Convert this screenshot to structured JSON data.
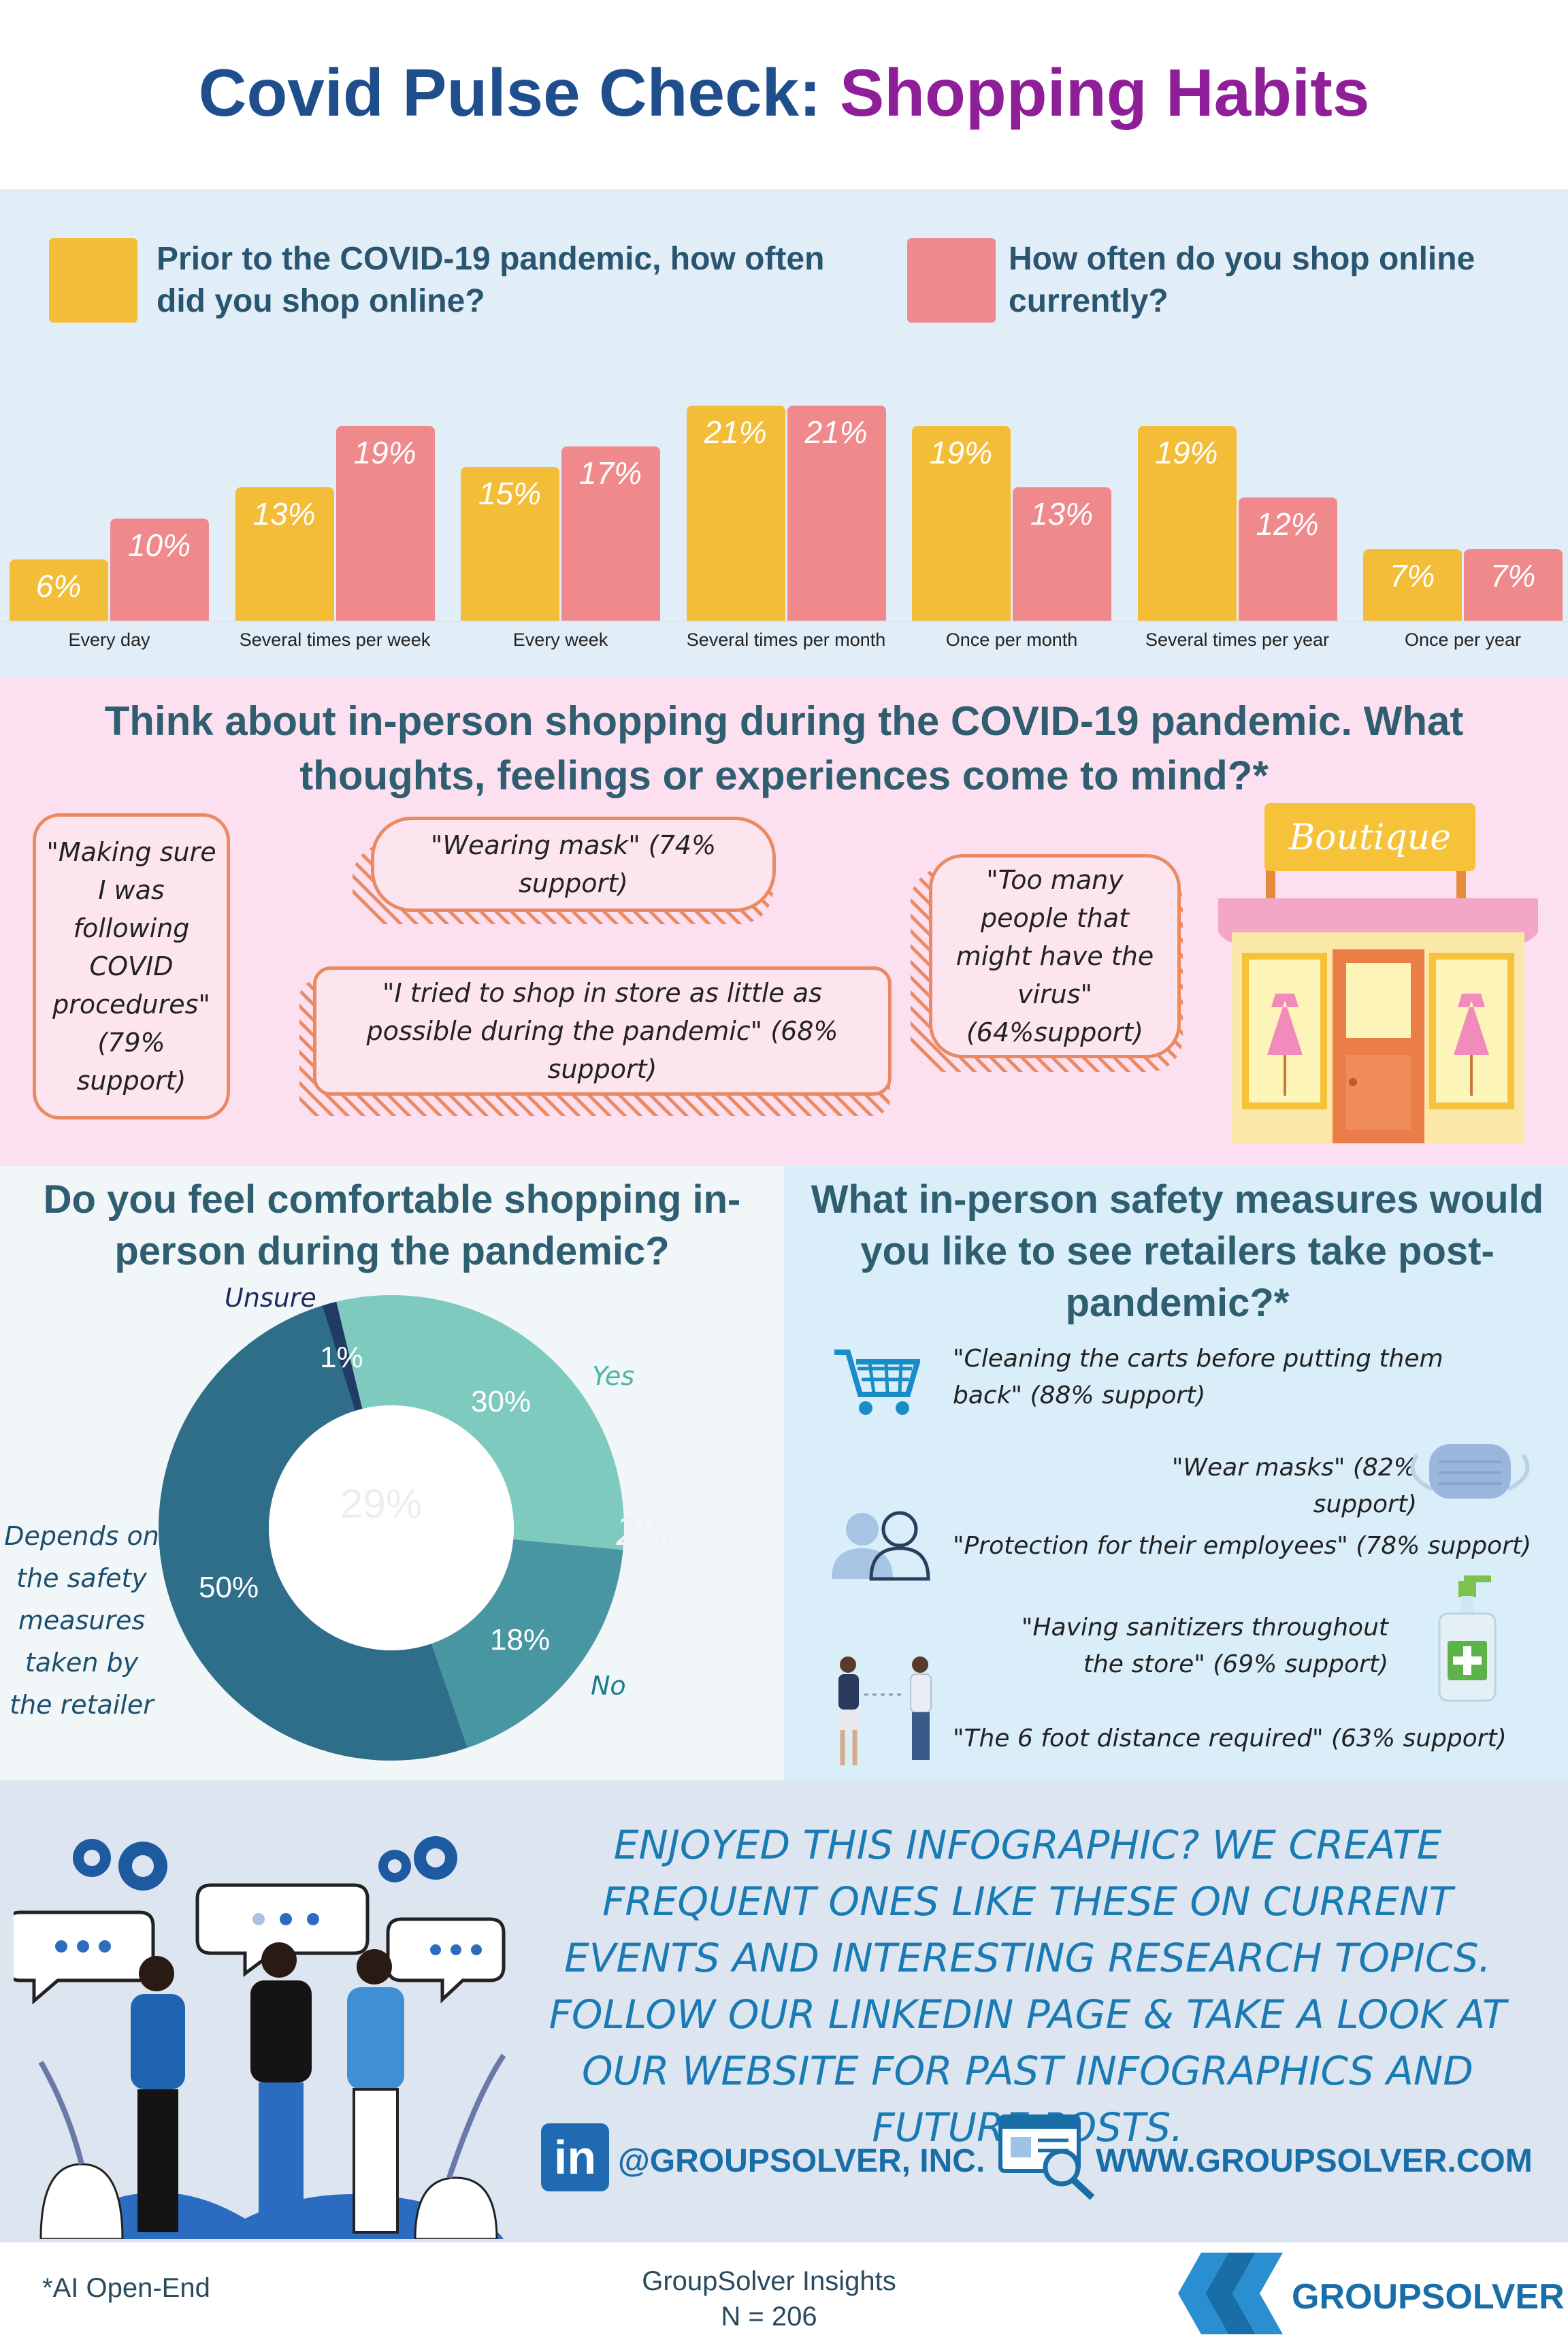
{
  "header": {
    "title_part1": "Covid Pulse Check:",
    "title_part2": "Shopping Habits"
  },
  "colors": {
    "prior": "#f4bd38",
    "current": "#f0898c",
    "title_blue": "#1f4e8c",
    "title_purple": "#8f1f98"
  },
  "legend": {
    "prior": "Prior to the COVID-19 pandemic, how often did you shop online?",
    "current": "How often do you shop online currently?"
  },
  "chart_data": [
    {
      "type": "bar",
      "categories": [
        "Every day",
        "Several times per week",
        "Every week",
        "Several times per month",
        "Once per month",
        "Several times per year",
        "Once per year"
      ],
      "series": [
        {
          "name": "Prior to the COVID-19 pandemic, how often did you shop online?",
          "values": [
            6,
            13,
            15,
            21,
            19,
            19,
            7
          ]
        },
        {
          "name": "How often do you shop online currently?",
          "values": [
            10,
            19,
            17,
            21,
            13,
            12,
            7
          ]
        }
      ],
      "value_labels": {
        "prior": [
          "6%",
          "13%",
          "15%",
          "21%",
          "19%",
          "19%",
          "7%"
        ],
        "current": [
          "10%",
          "19%",
          "17%",
          "21%",
          "13%",
          "12%",
          "7%"
        ]
      }
    },
    {
      "type": "pie",
      "title": "Do you feel comfortable shopping in-person during the pandemic?",
      "slices": [
        {
          "name": "Unsure",
          "value": 1,
          "label": "1%",
          "color": "#203c66"
        },
        {
          "name": "Yes",
          "value": 30,
          "label": "30%",
          "color": "#7ecabe"
        },
        {
          "name": "No",
          "value": 18,
          "label": "18%",
          "color": "#4996a3"
        },
        {
          "name": "Depends on the safety measures taken by the retailer",
          "value": 50,
          "label": "50%",
          "color": "#2e6e88"
        }
      ]
    }
  ],
  "thoughts": {
    "question": "Think about in-person shopping during the COVID-19 pandemic. What thoughts, feelings or experiences come to mind?*",
    "quotes": [
      "\"Making sure I was following COVID procedures\" (79% support)",
      "\"Wearing mask\" (74% support)",
      "\"I tried to shop in store as little as possible during the pandemic\" (68% support)",
      "\"Too many people that might have the virus\" (64%support)"
    ],
    "boutique_sign": "Boutique"
  },
  "comfort": {
    "question": "Do you feel comfortable shopping in-person during the pandemic?",
    "unsure": "Unsure",
    "yes": "Yes",
    "no": "No",
    "depends": "Depends on the safety measures taken by the retailer",
    "faint_center": "29%",
    "faint_right": "2%"
  },
  "measures": {
    "question": "What in-person safety measures would you like to see retailers take post-pandemic?*",
    "items": [
      {
        "text": "\"Cleaning the carts before putting them back\" (88% support)",
        "icon": "shopping-cart-icon"
      },
      {
        "text": "\"Wear masks\" (82% support)",
        "icon": "face-mask-icon"
      },
      {
        "text": "\"Protection for their employees\" (78% support)",
        "icon": "people-icon"
      },
      {
        "text": "\"Having sanitizers throughout the store\" (69% support)",
        "icon": "sanitizer-icon"
      },
      {
        "text": "\"The 6 foot distance required\" (63% support)",
        "icon": "distance-icon"
      }
    ]
  },
  "cta": {
    "text": "ENJOYED THIS INFOGRAPHIC? WE CREATE FREQUENT ONES LIKE THESE ON CURRENT EVENTS AND INTERESTING RESEARCH TOPICS. FOLLOW OUR LINKEDIN PAGE & TAKE A LOOK AT OUR WEBSITE FOR PAST INFOGRAPHICS AND FUTURE POSTS.",
    "linkedin": "@GROUPSOLVER, INC.",
    "website": "WWW.GROUPSOLVER.COM"
  },
  "footer": {
    "note": "*AI Open-End",
    "source": "GroupSolver Insights",
    "n": "N = 206",
    "logo": "GROUPSOLVER"
  }
}
